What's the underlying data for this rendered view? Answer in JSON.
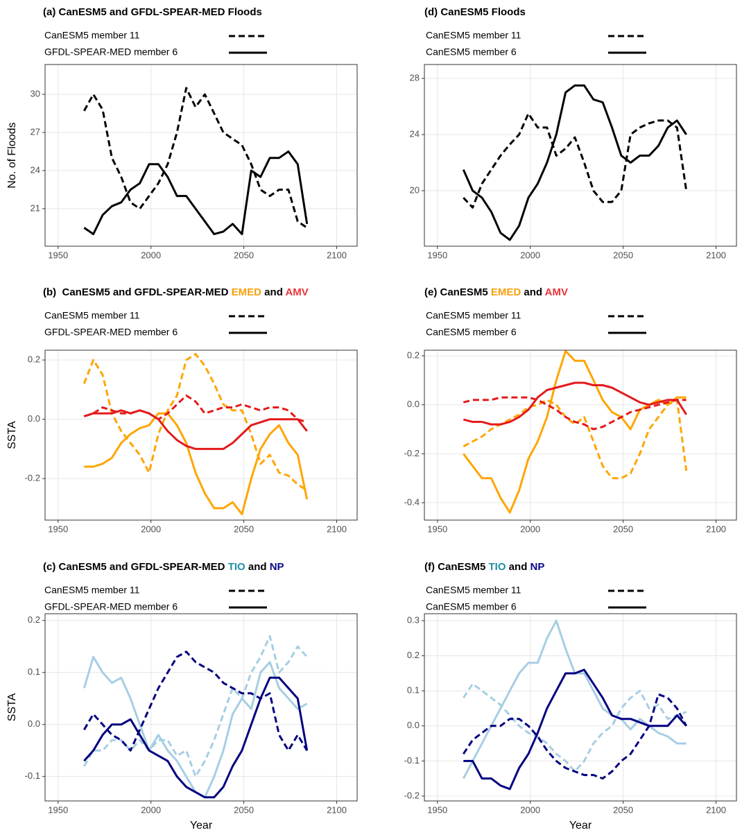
{
  "chart_data": [
    {
      "type": "line",
      "title": [
        {
          "text": "(a) CanESM5 and GFDL-SPEAR-MED Floods"
        }
      ],
      "legend": [
        {
          "label": "CanESM5 member 11",
          "dash": "dashed"
        },
        {
          "label": "GFDL-SPEAR-MED member 6",
          "dash": "solid"
        }
      ],
      "y_label": "No. of Floods",
      "xlim": [
        1943,
        2111
      ],
      "xticks": [
        1950,
        2000,
        2050,
        2100
      ],
      "ylim": [
        18.05,
        32.35
      ],
      "yticks": [
        21,
        24,
        27,
        30
      ],
      "grid": true,
      "x": [
        1964,
        1969,
        1974,
        1979,
        1984,
        1989,
        1994,
        1999,
        2004,
        2009,
        2014,
        2019,
        2024,
        2029,
        2034,
        2039,
        2044,
        2049,
        2054,
        2059,
        2064,
        2069,
        2074,
        2079,
        2084
      ],
      "series": [
        {
          "color": "#000000",
          "dash": "dashed",
          "values": [
            28.7,
            30,
            28.8,
            25,
            23.5,
            21.5,
            21,
            22,
            23,
            24.5,
            27,
            30.5,
            29,
            30,
            28.5,
            27,
            26.5,
            26,
            24.5,
            22.5,
            22,
            22.5,
            22.5,
            20,
            19.5
          ]
        },
        {
          "color": "#000000",
          "dash": "solid",
          "values": [
            19.5,
            19,
            20.5,
            21.2,
            21.5,
            22.5,
            23,
            24.5,
            24.5,
            23.5,
            22,
            22,
            21,
            20,
            19,
            19.2,
            19.8,
            19,
            24,
            23.5,
            25,
            25,
            25.5,
            24.5,
            19.8
          ]
        }
      ]
    },
    {
      "type": "line",
      "title": [
        {
          "text": "(b)  CanESM5 and GFDL-SPEAR-MED "
        },
        {
          "text": "EMED",
          "color": "#f5a10c"
        },
        {
          "text": " and "
        },
        {
          "text": "AMV",
          "color": "#e8333a"
        }
      ],
      "legend": [
        {
          "label": "CanESM5 member 11",
          "dash": "dashed"
        },
        {
          "label": "GFDL-SPEAR-MED member 6",
          "dash": "solid"
        }
      ],
      "y_label": "SSTA",
      "xlim": [
        1943,
        2111
      ],
      "xticks": [
        1950,
        2000,
        2050,
        2100
      ],
      "ylim": [
        -0.34,
        0.233
      ],
      "yticks": [
        {
          "value": -0.2,
          "label": "-0.2"
        },
        {
          "value": 0,
          "label": "0.0"
        },
        {
          "value": 0.2,
          "label": "0.2"
        }
      ],
      "grid": true,
      "x": [
        1964,
        1969,
        1974,
        1979,
        1984,
        1989,
        1994,
        1999,
        2004,
        2009,
        2014,
        2019,
        2024,
        2029,
        2034,
        2039,
        2044,
        2049,
        2054,
        2059,
        2064,
        2069,
        2074,
        2079,
        2084
      ],
      "series": [
        {
          "color": "#ffa500",
          "dash": "dashed",
          "values": [
            0.12,
            0.2,
            0.15,
            0.02,
            -0.04,
            -0.08,
            -0.12,
            -0.18,
            -0.05,
            0.03,
            0.08,
            0.2,
            0.22,
            0.18,
            0.12,
            0.05,
            0.03,
            0.03,
            -0.05,
            -0.15,
            -0.12,
            -0.18,
            -0.19,
            -0.22,
            -0.24
          ]
        },
        {
          "color": "#ffa500",
          "dash": "solid",
          "values": [
            -0.16,
            -0.16,
            -0.15,
            -0.13,
            -0.08,
            -0.05,
            -0.03,
            -0.02,
            0.02,
            0.02,
            -0.02,
            -0.08,
            -0.18,
            -0.25,
            -0.3,
            -0.3,
            -0.28,
            -0.32,
            -0.2,
            -0.1,
            -0.05,
            -0.02,
            -0.08,
            -0.12,
            -0.27
          ]
        },
        {
          "color": "#e31a1c",
          "dash": "dashed",
          "values": [
            0.01,
            0.02,
            0.04,
            0.03,
            0.02,
            0.02,
            0.03,
            0.02,
            0,
            0.02,
            0.05,
            0.08,
            0.06,
            0.02,
            0.03,
            0.04,
            0.04,
            0.05,
            0.04,
            0.03,
            0.04,
            0.04,
            0.03,
            0,
            -0.01
          ]
        },
        {
          "color": "#e31a1c",
          "dash": "solid",
          "values": [
            0.01,
            0.02,
            0.02,
            0.02,
            0.03,
            0.02,
            0.03,
            0.02,
            0,
            -0.04,
            -0.07,
            -0.09,
            -0.1,
            -0.1,
            -0.1,
            -0.1,
            -0.08,
            -0.05,
            -0.02,
            -0.01,
            0,
            0,
            0,
            0,
            -0.04
          ]
        }
      ]
    },
    {
      "type": "line",
      "title": [
        {
          "text": "(c) CanESM5 and GFDL-SPEAR-MED "
        },
        {
          "text": "TIO",
          "color": "#1f8fa3"
        },
        {
          "text": " and "
        },
        {
          "text": "NP",
          "color": "#0a0a8a"
        }
      ],
      "legend": [
        {
          "label": "CanESM5 member 11",
          "dash": "dashed"
        },
        {
          "label": "GFDL-SPEAR-MED member 6",
          "dash": "solid"
        }
      ],
      "y_label": "SSTA",
      "x_label": "Year",
      "xlim": [
        1943,
        2111
      ],
      "xticks": [
        1950,
        2000,
        2050,
        2100
      ],
      "ylim": [
        -0.147,
        0.213
      ],
      "yticks": [
        {
          "value": -0.1,
          "label": "-0.1"
        },
        {
          "value": 0,
          "label": "0.0"
        },
        0.1,
        0.2
      ],
      "grid": true,
      "x": [
        1964,
        1969,
        1974,
        1979,
        1984,
        1989,
        1994,
        1999,
        2004,
        2009,
        2014,
        2019,
        2024,
        2029,
        2034,
        2039,
        2044,
        2049,
        2054,
        2059,
        2064,
        2069,
        2074,
        2079,
        2084
      ],
      "series": [
        {
          "color": "#a6cee3",
          "dash": "solid",
          "values": [
            0.07,
            0.13,
            0.1,
            0.08,
            0.09,
            0.05,
            0,
            -0.05,
            -0.02,
            -0.05,
            -0.07,
            -0.1,
            -0.13,
            -0.14,
            -0.1,
            -0.05,
            0.02,
            0.05,
            0.03,
            0.1,
            0.12,
            0.07,
            0.05,
            0.03,
            0.04
          ]
        },
        {
          "color": "#a6cee3",
          "dash": "dashed",
          "values": [
            -0.08,
            -0.05,
            -0.05,
            -0.03,
            -0.03,
            -0.05,
            -0.03,
            -0.05,
            -0.03,
            -0.03,
            -0.06,
            -0.05,
            -0.1,
            -0.07,
            -0.03,
            0.02,
            0.07,
            0.05,
            0.1,
            0.13,
            0.17,
            0.1,
            0.12,
            0.15,
            0.13
          ]
        },
        {
          "color": "#000080",
          "dash": "dashed",
          "values": [
            -0.01,
            0.02,
            0,
            -0.02,
            -0.03,
            -0.05,
            -0.01,
            0.03,
            0.07,
            0.1,
            0.13,
            0.14,
            0.12,
            0.11,
            0.1,
            0.08,
            0.07,
            0.06,
            0.06,
            0.05,
            0.06,
            -0.02,
            -0.05,
            -0.02,
            -0.05
          ]
        },
        {
          "color": "#000080",
          "dash": "solid",
          "values": [
            -0.07,
            -0.05,
            -0.02,
            0,
            0,
            0.01,
            -0.02,
            -0.05,
            -0.06,
            -0.07,
            -0.1,
            -0.12,
            -0.13,
            -0.14,
            -0.14,
            -0.12,
            -0.08,
            -0.05,
            0,
            0.05,
            0.09,
            0.09,
            0.07,
            0.05,
            -0.05
          ]
        }
      ]
    },
    {
      "type": "line",
      "title": [
        {
          "text": "(d) CanESM5 Floods"
        }
      ],
      "legend": [
        {
          "label": "CanESM5 member 11",
          "dash": "dashed"
        },
        {
          "label": "CanESM5 member 6",
          "dash": "solid"
        }
      ],
      "xlim": [
        1943,
        2111
      ],
      "xticks": [
        1950,
        2000,
        2050,
        2100
      ],
      "ylim": [
        16.05,
        28.99
      ],
      "yticks": [
        20,
        24,
        28
      ],
      "grid": true,
      "x": [
        1964,
        1969,
        1974,
        1979,
        1984,
        1989,
        1994,
        1999,
        2004,
        2009,
        2014,
        2019,
        2024,
        2029,
        2034,
        2039,
        2044,
        2049,
        2054,
        2059,
        2064,
        2069,
        2074,
        2079,
        2084
      ],
      "series": [
        {
          "color": "#000000",
          "dash": "dashed",
          "values": [
            19.5,
            18.8,
            20.5,
            21.5,
            22.5,
            23.3,
            24,
            25.5,
            24.5,
            24.5,
            22.5,
            23,
            23.8,
            22,
            20,
            19.2,
            19.2,
            20,
            24,
            24.5,
            24.8,
            25,
            25,
            24.5,
            20
          ]
        },
        {
          "color": "#000000",
          "dash": "solid",
          "values": [
            21.5,
            20,
            19.5,
            18.5,
            17,
            16.5,
            17.5,
            19.5,
            20.5,
            22,
            24,
            27,
            27.5,
            27.5,
            26.5,
            26.3,
            24.5,
            22.5,
            22,
            22.5,
            22.5,
            23.2,
            24.5,
            25,
            24
          ]
        }
      ]
    },
    {
      "type": "line",
      "title": [
        {
          "text": "(e) CanESM5 "
        },
        {
          "text": "EMED",
          "color": "#f5a10c"
        },
        {
          "text": " and "
        },
        {
          "text": "AMV",
          "color": "#e8333a"
        }
      ],
      "legend": [
        {
          "label": "CanESM5 member 11",
          "dash": "dashed"
        },
        {
          "label": "CanESM5 member 6",
          "dash": "solid"
        }
      ],
      "xlim": [
        1943,
        2111
      ],
      "xticks": [
        1950,
        2000,
        2050,
        2100
      ],
      "ylim": [
        -0.471,
        0.223
      ],
      "yticks": [
        {
          "value": -0.4,
          "label": "-0.4"
        },
        {
          "value": -0.2,
          "label": "-0.2"
        },
        {
          "value": 0,
          "label": "0.0"
        },
        0.2
      ],
      "grid": true,
      "x": [
        1964,
        1969,
        1974,
        1979,
        1984,
        1989,
        1994,
        1999,
        2004,
        2009,
        2014,
        2019,
        2024,
        2029,
        2034,
        2039,
        2044,
        2049,
        2054,
        2059,
        2064,
        2069,
        2074,
        2079,
        2084
      ],
      "series": [
        {
          "color": "#ffa500",
          "dash": "dashed",
          "values": [
            -0.17,
            -0.15,
            -0.13,
            -0.1,
            -0.08,
            -0.06,
            -0.04,
            -0.01,
            0,
            0.02,
            0,
            -0.05,
            -0.08,
            -0.05,
            -0.15,
            -0.25,
            -0.3,
            -0.3,
            -0.28,
            -0.2,
            -0.1,
            -0.05,
            0,
            0.02,
            -0.27
          ]
        },
        {
          "color": "#ffa500",
          "dash": "solid",
          "values": [
            -0.2,
            -0.25,
            -0.3,
            -0.3,
            -0.38,
            -0.44,
            -0.35,
            -0.22,
            -0.15,
            -0.05,
            0.1,
            0.22,
            0.18,
            0.18,
            0.1,
            0.02,
            -0.03,
            -0.05,
            -0.1,
            -0.02,
            0,
            0.02,
            0,
            0.03,
            0.03
          ]
        },
        {
          "color": "#e31a1c",
          "dash": "dashed",
          "values": [
            0.01,
            0.02,
            0.02,
            0.02,
            0.03,
            0.03,
            0.03,
            0.03,
            0.02,
            0,
            -0.02,
            -0.05,
            -0.07,
            -0.08,
            -0.1,
            -0.09,
            -0.07,
            -0.05,
            -0.03,
            -0.02,
            -0.01,
            0,
            0.01,
            0.02,
            0.02
          ]
        },
        {
          "color": "#e31a1c",
          "dash": "solid",
          "values": [
            -0.06,
            -0.07,
            -0.07,
            -0.08,
            -0.08,
            -0.07,
            -0.05,
            -0.02,
            0.03,
            0.06,
            0.07,
            0.08,
            0.09,
            0.09,
            0.08,
            0.08,
            0.07,
            0.05,
            0.03,
            0.01,
            0,
            0.01,
            0.02,
            0.02,
            -0.04
          ]
        }
      ]
    },
    {
      "type": "line",
      "title": [
        {
          "text": "(f) CanESM5 "
        },
        {
          "text": "TIO",
          "color": "#1f8fa3"
        },
        {
          "text": " and "
        },
        {
          "text": "NP",
          "color": "#0a0a8a"
        }
      ],
      "legend": [
        {
          "label": "CanESM5 member 11",
          "dash": "dashed"
        },
        {
          "label": "CanESM5 member 6",
          "dash": "solid"
        }
      ],
      "x_label": "Year",
      "xlim": [
        1943,
        2111
      ],
      "xticks": [
        1950,
        2000,
        2050,
        2100
      ],
      "ylim": [
        -0.214,
        0.32
      ],
      "yticks": [
        {
          "value": -0.2,
          "label": "-0.2"
        },
        {
          "value": -0.1,
          "label": "-0.1"
        },
        {
          "value": 0,
          "label": "0.0"
        },
        0.1,
        0.2,
        0.3
      ],
      "grid": true,
      "x": [
        1964,
        1969,
        1974,
        1979,
        1984,
        1989,
        1994,
        1999,
        2004,
        2009,
        2014,
        2019,
        2024,
        2029,
        2034,
        2039,
        2044,
        2049,
        2054,
        2059,
        2064,
        2069,
        2074,
        2079,
        2084
      ],
      "series": [
        {
          "color": "#a6cee3",
          "dash": "solid",
          "values": [
            -0.15,
            -0.1,
            -0.05,
            0,
            0.05,
            0.1,
            0.15,
            0.18,
            0.18,
            0.25,
            0.3,
            0.22,
            0.15,
            0.15,
            0.1,
            0.05,
            0.03,
            0.02,
            -0.01,
            0.02,
            0,
            -0.02,
            -0.03,
            -0.05,
            -0.05
          ]
        },
        {
          "color": "#a6cee3",
          "dash": "dashed",
          "values": [
            0.08,
            0.12,
            0.1,
            0.08,
            0.06,
            0.03,
            0,
            -0.02,
            -0.03,
            -0.05,
            -0.08,
            -0.1,
            -0.13,
            -0.1,
            -0.05,
            -0.02,
            0,
            0.05,
            0.08,
            0.1,
            0.05,
            0.06,
            0.02,
            0.03,
            0.04
          ]
        },
        {
          "color": "#000080",
          "dash": "dashed",
          "values": [
            -0.08,
            -0.04,
            -0.02,
            0,
            0,
            0.02,
            0.02,
            0,
            -0.03,
            -0.07,
            -0.1,
            -0.12,
            -0.13,
            -0.14,
            -0.14,
            -0.15,
            -0.13,
            -0.1,
            -0.08,
            -0.04,
            0,
            0.09,
            0.08,
            0.05,
            0
          ]
        },
        {
          "color": "#000080",
          "dash": "solid",
          "values": [
            -0.1,
            -0.1,
            -0.15,
            -0.15,
            -0.17,
            -0.18,
            -0.12,
            -0.08,
            -0.02,
            0.05,
            0.1,
            0.15,
            0.15,
            0.16,
            0.12,
            0.08,
            0.03,
            0.02,
            0.02,
            0.01,
            0,
            0,
            0,
            0.03,
            0
          ]
        }
      ]
    }
  ]
}
